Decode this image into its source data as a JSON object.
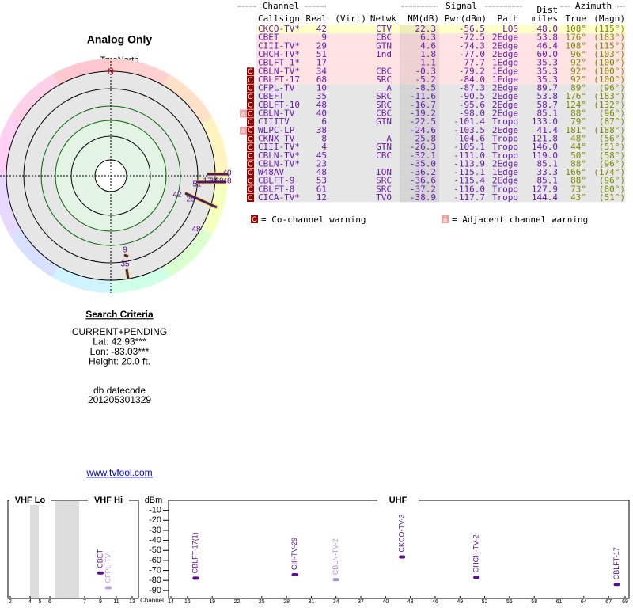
{
  "header": {
    "title": "Analog Only",
    "north_label": "TrueNorth",
    "north_mark": "N"
  },
  "polar_labels": [
    "40",
    "51",
    "17",
    "34",
    "68",
    "48",
    "42",
    "29",
    "48",
    "9",
    "35"
  ],
  "search": {
    "title": "Search Criteria",
    "lines": [
      "CURRENT+PENDING",
      "Lat: 42.93***",
      "Lon: -83.03***",
      "Height: 20.0 ft."
    ],
    "datecode_label": "db datecode",
    "datecode": "201205301329",
    "link": "www.tvfool.com"
  },
  "table": {
    "groups": [
      "Channel",
      "Signal",
      "Azimuth"
    ],
    "dist_top": "Dist",
    "columns": [
      "Callsign",
      "Real",
      "(Virt)",
      "Netwk",
      "NM(dB)",
      "Pwr(dBm)",
      "Path",
      "miles",
      "True",
      "(Magn)"
    ],
    "rows": [
      {
        "flags": [],
        "bg": "#ffffc8",
        "cells": [
          "CKCO-TV*",
          "42",
          "CTV",
          "22.3",
          "-56.5",
          "LOS",
          "48.0",
          "108°",
          "(115°)"
        ]
      },
      {
        "flags": [],
        "bg": "#ffe2e2",
        "cells": [
          "CBET",
          "9",
          "CBC",
          "6.3",
          "-72.5",
          "2Edge",
          "53.8",
          "176°",
          "(183°)"
        ]
      },
      {
        "flags": [],
        "bg": "#ffe2e2",
        "cells": [
          "CIII-TV*",
          "29",
          "GTN",
          "4.6",
          "-74.3",
          "2Edge",
          "46.4",
          "108°",
          "(115°)"
        ]
      },
      {
        "flags": [],
        "bg": "#ffe2e2",
        "cells": [
          "CHCH-TV*",
          "51",
          "Ind",
          "1.8",
          "-77.0",
          "2Edge",
          "60.0",
          "96°",
          "(103°)"
        ]
      },
      {
        "flags": [],
        "bg": "#ffe2e2",
        "cells": [
          "CBLFT-1*",
          "17",
          null,
          "1.1",
          "-77.7",
          "1Edge",
          "35.3",
          "92°",
          "(100°)"
        ]
      },
      {
        "flags": [
          "C"
        ],
        "bg": "#ffe2e2",
        "cells": [
          "CBLN-TV*",
          "34",
          "CBC",
          "-0.3",
          "-79.2",
          "1Edge",
          "35.3",
          "92°",
          "(100°)"
        ]
      },
      {
        "flags": [
          "C"
        ],
        "bg": "#ffe2e2",
        "cells": [
          "CBLFT-17",
          "68",
          "SRC",
          "-5.2",
          "-84.0",
          "1Edge",
          "35.3",
          "92°",
          "(100°)"
        ]
      },
      {
        "flags": [
          "C"
        ],
        "bg": "#e6e6e6",
        "cells": [
          "CFPL-TV",
          "10",
          "A",
          "-8.5",
          "-87.3",
          "2Edge",
          "89.7",
          "89°",
          "(96°)"
        ]
      },
      {
        "flags": [
          "C"
        ],
        "bg": "#e6e6e6",
        "cells": [
          "CBEFT",
          "35",
          "SRC",
          "-11.6",
          "-90.5",
          "2Edge",
          "53.8",
          "176°",
          "(183°)"
        ]
      },
      {
        "flags": [
          "C"
        ],
        "bg": "#e6e6e6",
        "cells": [
          "CBLFT-10",
          "48",
          "SRC",
          "-16.7",
          "-95.6",
          "2Edge",
          "58.7",
          "124°",
          "(132°)"
        ]
      },
      {
        "flags": [
          "a",
          "C"
        ],
        "bg": "#e6e6e6",
        "cells": [
          "CBLN-TV",
          "40",
          "CBC",
          "-19.2",
          "-98.0",
          "2Edge",
          "85.1",
          "88°",
          "(96°)"
        ]
      },
      {
        "flags": [
          "C"
        ],
        "bg": "#e6e6e6",
        "cells": [
          "CIIITV",
          "6",
          "GTN",
          "-22.5",
          "-101.4",
          "Tropo",
          "133.0",
          "79°",
          "(87°)"
        ]
      },
      {
        "flags": [
          "a",
          "C"
        ],
        "bg": "#e6e6e6",
        "cells": [
          "WLPC-LP",
          "38",
          null,
          "-24.6",
          "-103.5",
          "2Edge",
          "41.4",
          "181°",
          "(188°)"
        ]
      },
      {
        "flags": [
          "C"
        ],
        "bg": "#e6e6e6",
        "cells": [
          "CKNX-TV",
          "8",
          "A",
          "-25.8",
          "-104.6",
          "Tropo",
          "121.8",
          "48°",
          "(56°)"
        ]
      },
      {
        "flags": [
          "C"
        ],
        "bg": "#e6e6e6",
        "cells": [
          "CIII-TV*",
          "4",
          "GTN",
          "-26.3",
          "-105.1",
          "Tropo",
          "146.0",
          "44°",
          "(51°)"
        ]
      },
      {
        "flags": [
          "C"
        ],
        "bg": "#e6e6e6",
        "cells": [
          "CBLN-TV*",
          "45",
          "CBC",
          "-32.1",
          "-111.0",
          "Tropo",
          "119.0",
          "50°",
          "(58°)"
        ]
      },
      {
        "flags": [
          "C"
        ],
        "bg": "#e6e6e6",
        "cells": [
          "CBLN-TV*",
          "23",
          null,
          "-35.0",
          "-113.9",
          "2Edge",
          "85.1",
          "88°",
          "(96°)"
        ]
      },
      {
        "flags": [
          "C"
        ],
        "bg": "#e6e6e6",
        "cells": [
          "W48AV",
          "48",
          "ION",
          "-36.2",
          "-115.1",
          "1Edge",
          "33.3",
          "166°",
          "(174°)"
        ]
      },
      {
        "flags": [
          "C"
        ],
        "bg": "#e6e6e6",
        "cells": [
          "CBLFT-9",
          "53",
          "SRC",
          "-36.6",
          "-115.4",
          "2Edge",
          "85.1",
          "88°",
          "(96°)"
        ]
      },
      {
        "flags": [
          "C"
        ],
        "bg": "#e6e6e6",
        "cells": [
          "CBLFT-8",
          "61",
          "SRC",
          "-37.2",
          "-116.0",
          "Tropo",
          "127.9",
          "73°",
          "(80°)"
        ]
      },
      {
        "flags": [
          "C"
        ],
        "bg": "#e6e6e6",
        "cells": [
          "CICA-TV*",
          "12",
          "TVO",
          "-38.9",
          "-117.7",
          "Tropo",
          "144.4",
          "43°",
          "(51°)"
        ]
      }
    ]
  },
  "legend": {
    "co_icon": "C",
    "co": "= Co-channel warning",
    "adj_icon": "a",
    "adj": "= Adjacent channel warning"
  },
  "spectrum": {
    "bands": [
      "VHF Lo",
      "VHF Hi",
      "UHF"
    ],
    "unit": "dBm",
    "axis_label": "Channel",
    "ylim": [
      -98,
      0
    ],
    "yticks": [
      -10,
      -20,
      -30,
      -40,
      -50,
      -60,
      -70,
      -80,
      -90
    ],
    "channels": [
      2,
      4,
      5,
      6,
      7,
      9,
      11,
      13,
      14,
      16,
      19,
      22,
      25,
      28,
      31,
      34,
      37,
      40,
      43,
      46,
      49,
      52,
      55,
      58,
      61,
      64,
      67,
      69
    ],
    "stations": [
      {
        "name": "CBET",
        "channel": 9,
        "value": -72.5,
        "color": "#5a1090"
      },
      {
        "name": "CFPL-TV",
        "channel": 10,
        "value": -87.3,
        "color": "#c0a0e0"
      },
      {
        "name": "CBLFT-17(1)",
        "channel": 17,
        "value": -77.7,
        "color": "#5a1090"
      },
      {
        "name": "CIII-TV-29",
        "channel": 29,
        "value": -74.3,
        "color": "#5a1090"
      },
      {
        "name": "CBLN-TV-2",
        "channel": 34,
        "value": -79.2,
        "color": "#b090d8"
      },
      {
        "name": "CKCO-TV-3",
        "channel": 42,
        "value": -56.5,
        "color": "#5a1090"
      },
      {
        "name": "CHCH-TV-2",
        "channel": 51,
        "value": -77.0,
        "color": "#5a1090"
      },
      {
        "name": "CBLFT-17",
        "channel": 68,
        "value": -84.0,
        "color": "#5a1090"
      }
    ]
  }
}
